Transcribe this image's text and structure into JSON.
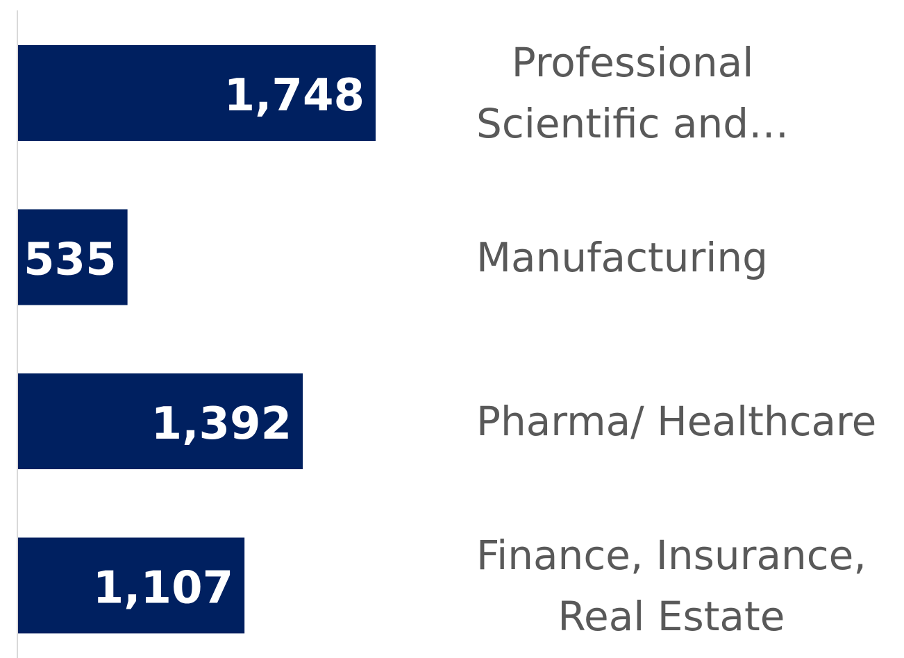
{
  "chart_data": {
    "type": "bar",
    "orientation": "horizontal",
    "categories": [
      "Professional\nScientific and…",
      "Manufacturing",
      "Pharma/ Healthcare",
      "Finance, Insurance,\nReal Estate"
    ],
    "values": [
      1748,
      535,
      1392,
      1107
    ],
    "value_labels": [
      "1,748",
      "535",
      "1,392",
      "1,107"
    ],
    "color": "#002060"
  }
}
